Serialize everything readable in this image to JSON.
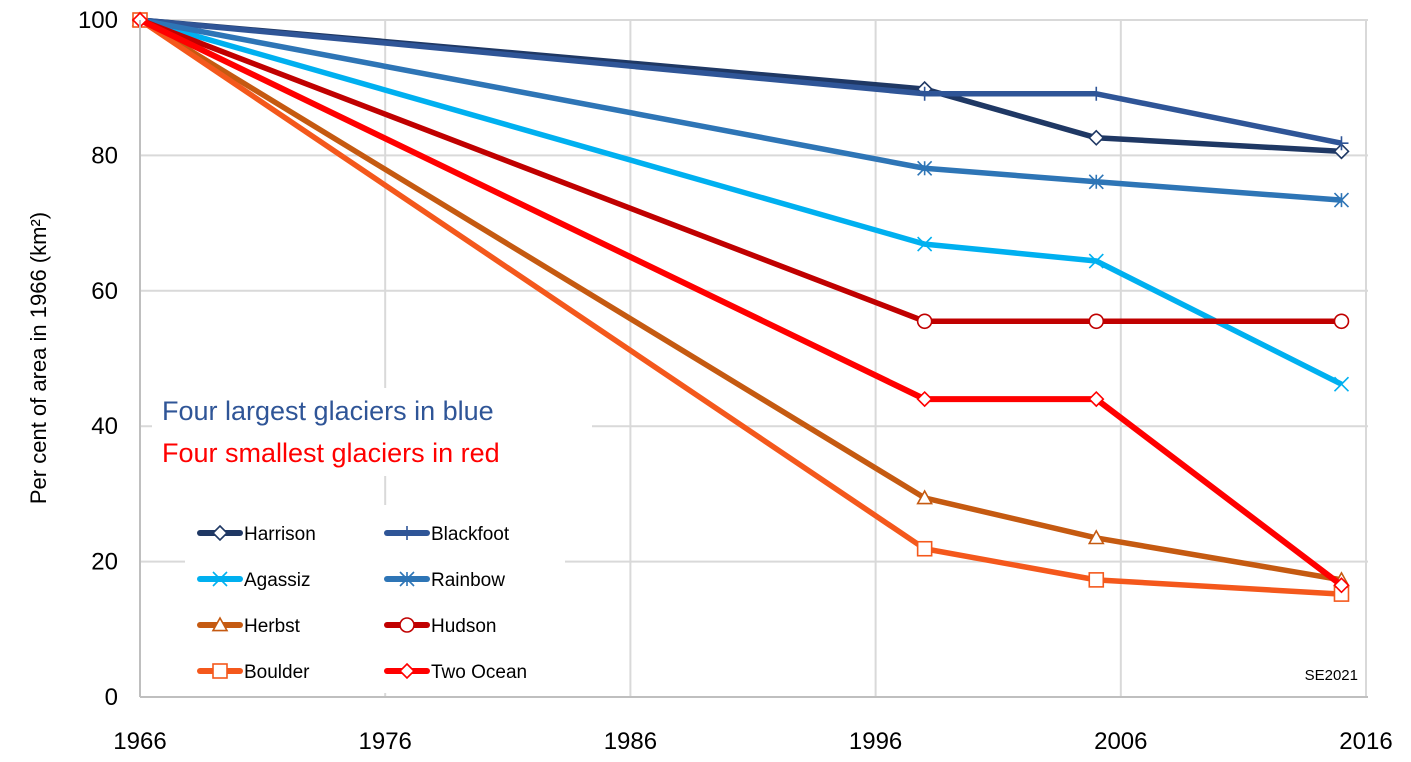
{
  "chart_data": {
    "type": "line",
    "title": "",
    "xlabel": "",
    "ylabel": "Per cent of area in 1966 (km²)",
    "xlim": [
      1966,
      2016
    ],
    "ylim": [
      0,
      100
    ],
    "xticks": [
      1966,
      1976,
      1986,
      1996,
      2006,
      2016
    ],
    "yticks": [
      0,
      20,
      40,
      60,
      80,
      100
    ],
    "grid": true,
    "legend_position": "bottom-left",
    "annotations": {
      "blue_note": "Four largest glaciers in blue",
      "red_note": "Four smallest glaciers in red",
      "credit": "SE2021"
    },
    "annotation_colors": {
      "blue_note": "#2f5597",
      "red_note": "#ff0000"
    },
    "x": [
      1966,
      1998,
      2005,
      2015
    ],
    "series": [
      {
        "name": "Harrison",
        "color": "#1f3864",
        "marker": "diamond",
        "values": [
          100,
          89.8,
          82.6,
          80.6
        ]
      },
      {
        "name": "Blackfoot",
        "color": "#2f5597",
        "marker": "plus",
        "values": [
          100,
          89.1,
          89.1,
          81.8
        ]
      },
      {
        "name": "Agassiz",
        "color": "#00b0f0",
        "marker": "x",
        "values": [
          100,
          66.9,
          64.4,
          46.2
        ]
      },
      {
        "name": "Rainbow",
        "color": "#2e75b6",
        "marker": "asterisk",
        "values": [
          100,
          78.1,
          76.1,
          73.4
        ]
      },
      {
        "name": "Herbst",
        "color": "#c55a11",
        "marker": "triangle",
        "values": [
          100,
          29.4,
          23.5,
          17.3
        ]
      },
      {
        "name": "Hudson",
        "color": "#c00000",
        "marker": "circle",
        "values": [
          100,
          55.5,
          55.5,
          55.5
        ]
      },
      {
        "name": "Boulder",
        "color": "#f4581c",
        "marker": "square",
        "values": [
          100,
          21.9,
          17.3,
          15.2
        ]
      },
      {
        "name": "Two Ocean",
        "color": "#ff0000",
        "marker": "diamond",
        "values": [
          100,
          44.0,
          44.0,
          16.5
        ]
      }
    ]
  }
}
